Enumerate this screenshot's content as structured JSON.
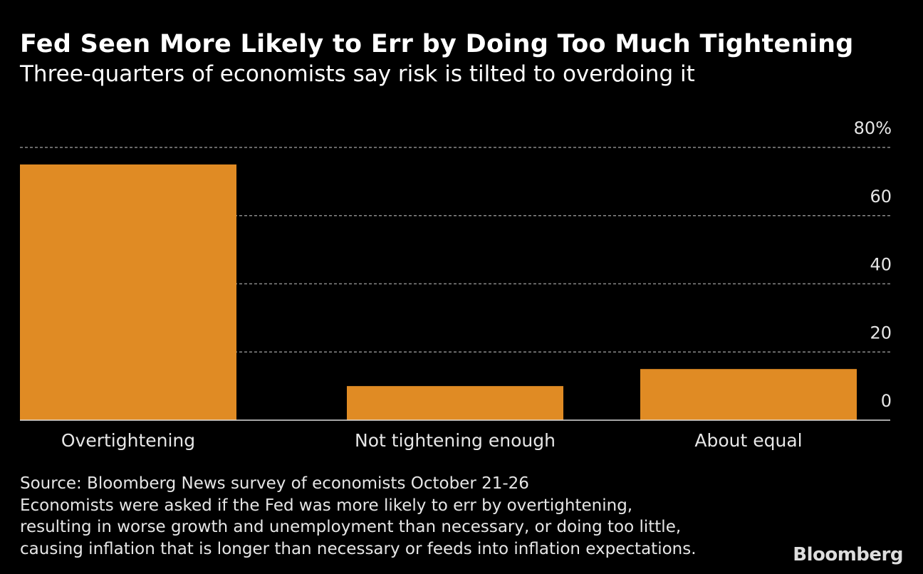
{
  "title": "Fed Seen More Likely to Err by Doing Too Much Tightening",
  "subtitle": "Three-quarters of economists say risk is tilted to overdoing it",
  "chart_data": {
    "type": "bar",
    "categories": [
      "Overtightening",
      "Not tightening enough",
      "About equal"
    ],
    "values": [
      75,
      10,
      15
    ],
    "ylim": [
      0,
      80
    ],
    "yticks": [
      0,
      20,
      40,
      60,
      80
    ],
    "ytick_labels": [
      "0",
      "20",
      "40",
      "60",
      "80%"
    ],
    "y_axis_side": "right",
    "grid": true,
    "bar_color": "#E08B24"
  },
  "notes": {
    "source": "Source: Bloomberg News survey of economists October 21-26",
    "line1": "Economists were asked if the Fed was more likely to err by overtightening,",
    "line2": "resulting in worse growth and unemployment than necessary, or doing too little,",
    "line3": "causing inflation that is longer than necessary or feeds into inflation expectations."
  },
  "logo": "Bloomberg"
}
